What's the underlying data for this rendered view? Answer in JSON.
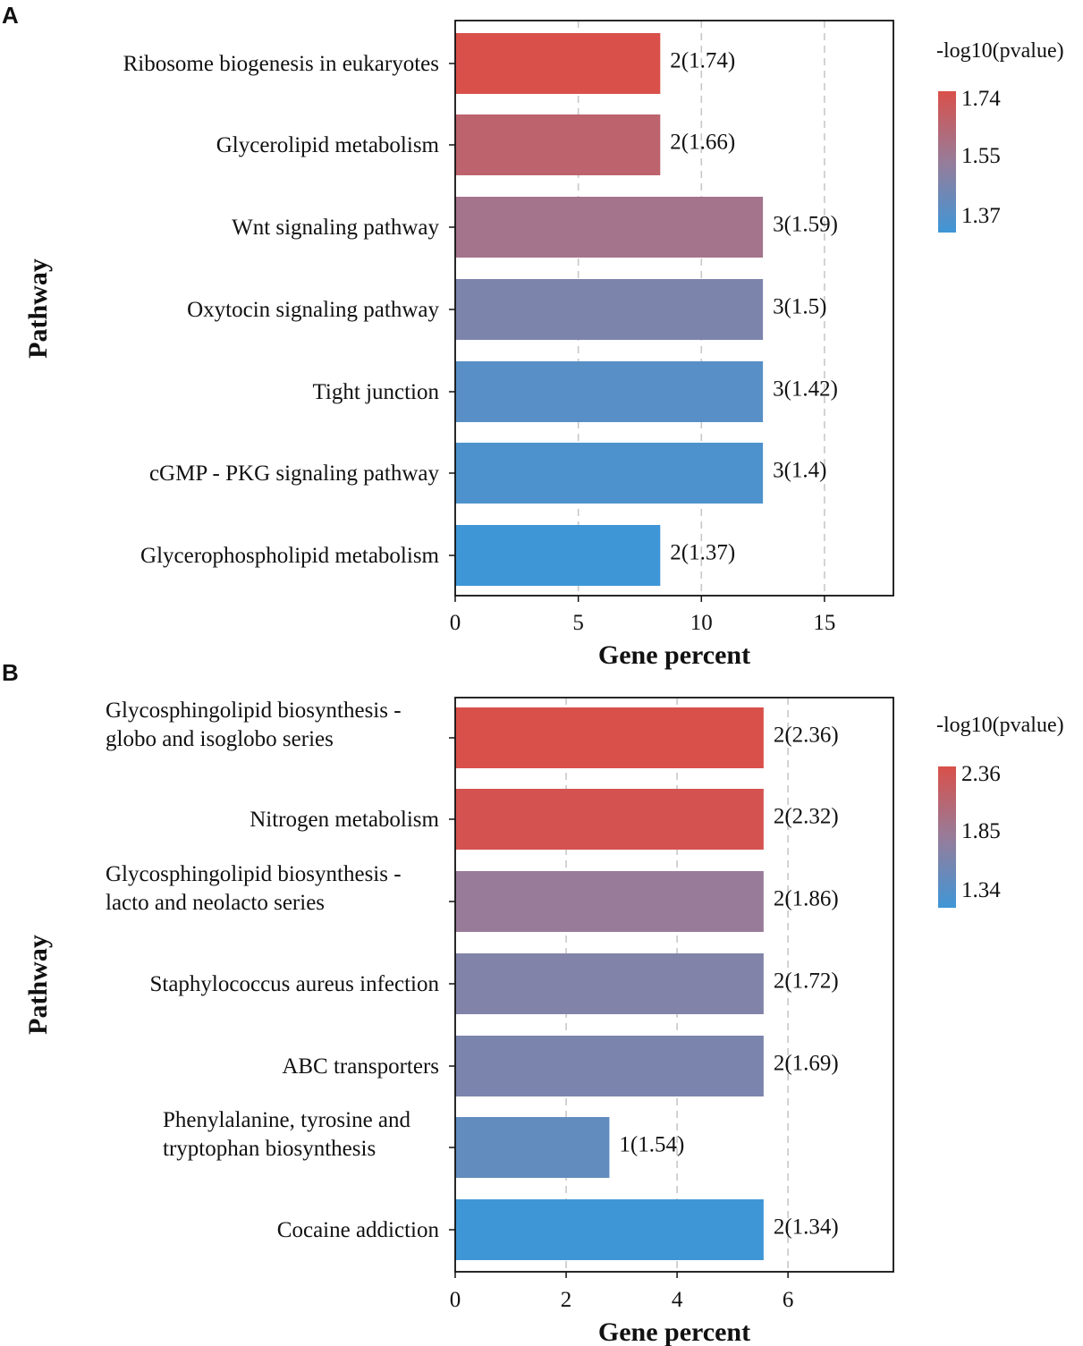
{
  "chart_data": [
    {
      "panel": "A",
      "type": "bar",
      "orientation": "horizontal",
      "title": "",
      "xlabel": "Gene percent",
      "ylabel": "Pathway",
      "xlim": [
        0,
        17.8
      ],
      "xticks": [
        0,
        5,
        10,
        15
      ],
      "grid": "vertical dashed at x ticks",
      "categories": [
        "Ribosome biogenesis in eukaryotes",
        "Glycerolipid metabolism",
        "Wnt signaling pathway",
        "Oxytocin signaling pathway",
        "Tight junction",
        "cGMP - PKG signaling pathway",
        "Glycerophospholipid metabolism"
      ],
      "values": [
        8.33,
        8.33,
        12.5,
        12.5,
        12.5,
        12.5,
        8.33
      ],
      "color_values": [
        1.74,
        1.66,
        1.59,
        1.5,
        1.42,
        1.4,
        1.37
      ],
      "bar_labels": [
        "2(1.74)",
        "2(1.66)",
        "3(1.59)",
        "3(1.5)",
        "3(1.42)",
        "3(1.4)",
        "2(1.37)"
      ],
      "legend": {
        "title": "-log10(pvalue)",
        "placement": "right",
        "range": [
          1.37,
          1.74
        ],
        "ticks": [
          "1.74",
          "1.55",
          "1.37"
        ],
        "color_high": "#d9504a",
        "color_low": "#3f96d6"
      }
    },
    {
      "panel": "B",
      "type": "bar",
      "orientation": "horizontal",
      "title": "",
      "xlabel": "Gene percent",
      "ylabel": "Pathway",
      "xlim": [
        0,
        7.9
      ],
      "xticks": [
        0,
        2,
        4,
        6
      ],
      "grid": "vertical dashed at x ticks",
      "categories": [
        [
          "Glycosphingolipid biosynthesis -",
          "globo and isoglobo series"
        ],
        [
          "Nitrogen metabolism"
        ],
        [
          "Glycosphingolipid biosynthesis -",
          "lacto and neolacto series"
        ],
        [
          "Staphylococcus aureus infection"
        ],
        [
          "ABC transporters"
        ],
        [
          "Phenylalanine, tyrosine and",
          "tryptophan biosynthesis"
        ],
        [
          "Cocaine addiction"
        ]
      ],
      "values": [
        5.56,
        5.56,
        5.56,
        5.56,
        5.56,
        2.78,
        5.56
      ],
      "color_values": [
        2.36,
        2.32,
        1.86,
        1.72,
        1.69,
        1.54,
        1.34
      ],
      "bar_labels": [
        "2(2.36)",
        "2(2.32)",
        "2(1.86)",
        "2(1.72)",
        "2(1.69)",
        "1(1.54)",
        "2(1.34)"
      ],
      "legend": {
        "title": "-log10(pvalue)",
        "placement": "right",
        "range": [
          1.34,
          2.36
        ],
        "ticks": [
          "2.36",
          "1.85",
          "1.34"
        ],
        "color_high": "#d9504a",
        "color_low": "#3f96d6"
      }
    }
  ]
}
